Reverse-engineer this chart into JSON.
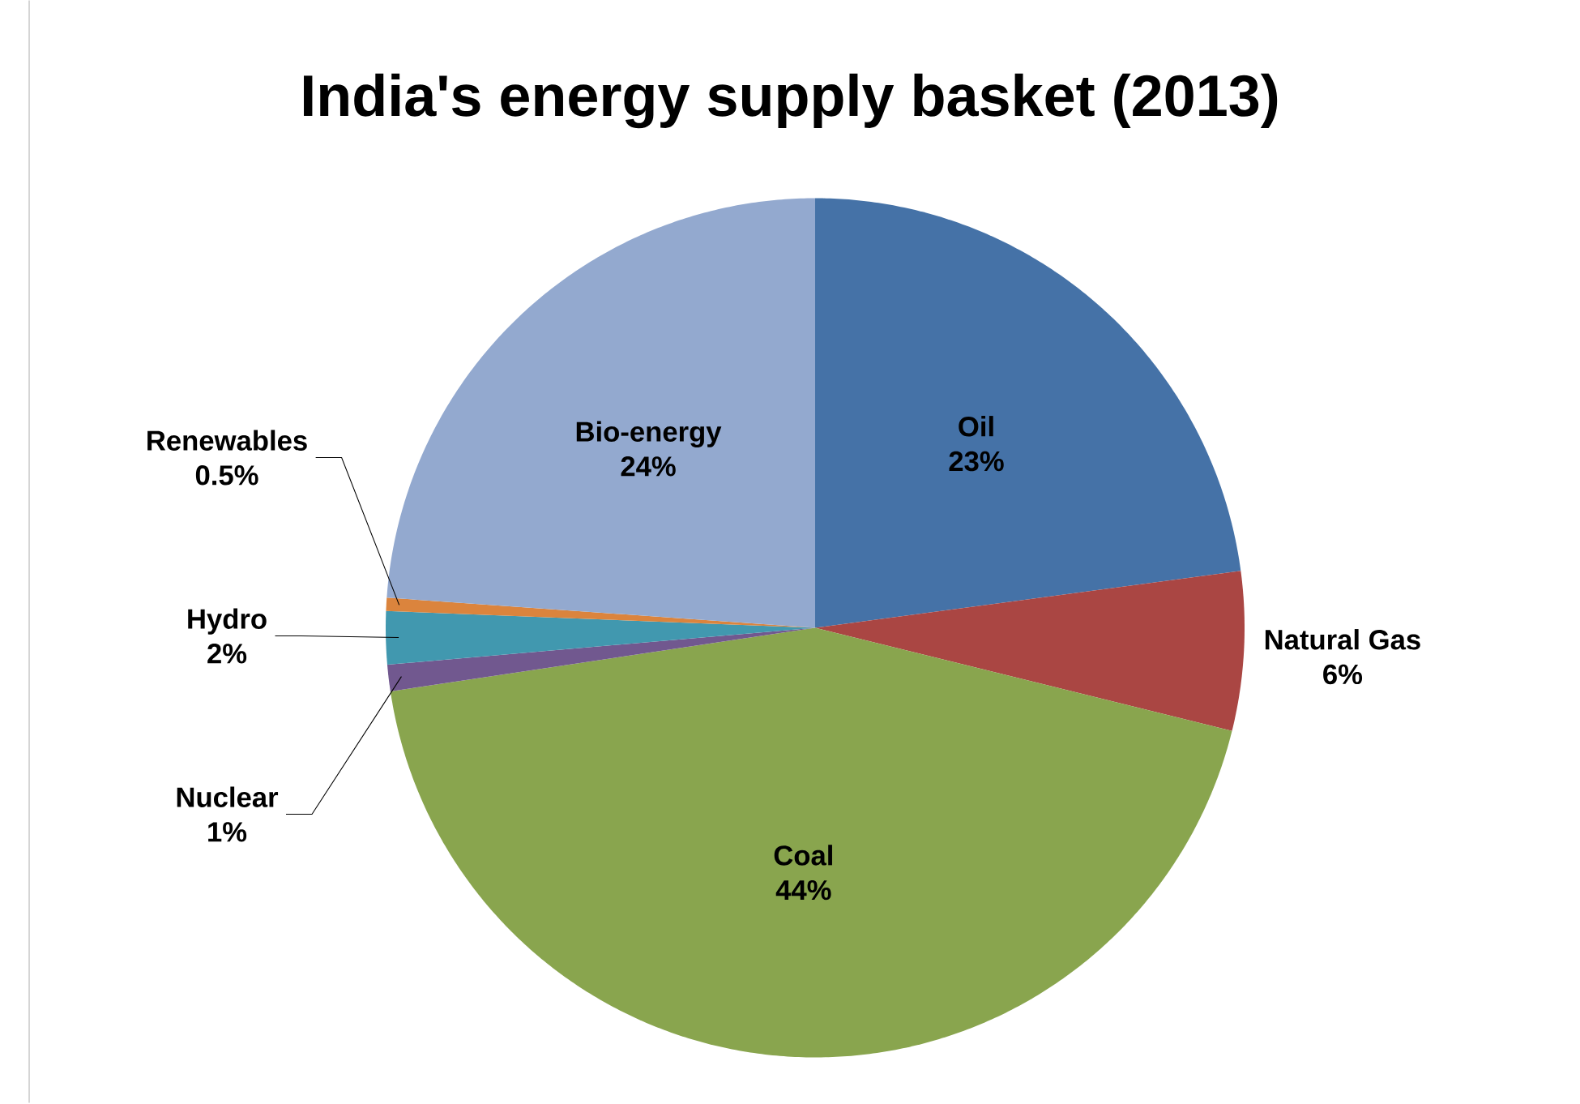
{
  "chart_data": {
    "type": "pie",
    "title": "India's energy supply basket (2013)",
    "categories": [
      "Oil",
      "Natural Gas",
      "Coal",
      "Nuclear",
      "Hydro",
      "Renewables",
      "Bio-energy"
    ],
    "values": [
      23,
      6,
      44,
      1,
      2,
      0.5,
      24
    ],
    "value_labels": [
      "23%",
      "6%",
      "44%",
      "1%",
      "2%",
      "0.5%",
      "24%"
    ],
    "colors": [
      "#4572a7",
      "#aa4643",
      "#89a54e",
      "#71588f",
      "#4198af",
      "#db843d",
      "#93a9cf"
    ]
  }
}
